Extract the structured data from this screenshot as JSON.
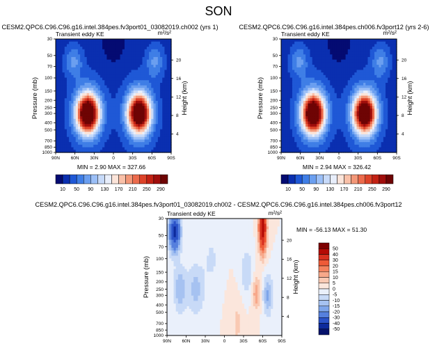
{
  "page_title": "SON",
  "chart_data": [
    {
      "type": "heatmap",
      "title": "CESM2.QPC6.C96.C96.g16.intel.384pes.fv3port01_03082019.ch002 (yrs 1)",
      "subtitle": "Transient eddy KE",
      "units": "m²/s²",
      "ylabel": "Pressure (mb)",
      "y2label": "Height (km)",
      "x_ticks": [
        "90N",
        "60N",
        "30N",
        "0",
        "30S",
        "60S",
        "90S"
      ],
      "y_ticks": [
        "30",
        "50",
        "70",
        "100",
        "150",
        "200",
        "250",
        "300",
        "400",
        "500",
        "700",
        "850",
        "1000"
      ],
      "y2_ticks": [
        "20",
        "16",
        "12",
        "8",
        "4"
      ],
      "stats": "MIN = 2.90  MAX = 327.66",
      "min": 2.9,
      "max": 327.66,
      "jets": [
        {
          "lat": -40,
          "pressure": 300,
          "peak": 320
        },
        {
          "lat": 40,
          "pressure": 300,
          "peak": 300
        }
      ],
      "colorbar": {
        "labels": [
          "10",
          "50",
          "90",
          "130",
          "170",
          "210",
          "250",
          "290"
        ],
        "colors": [
          "#040b72",
          "#0a2fb0",
          "#1f58d6",
          "#3f7ee6",
          "#6b9ff0",
          "#9bbff7",
          "#c7daf9",
          "#e8eefb",
          "#fbe4d9",
          "#f9c0a8",
          "#f39778",
          "#ec6b4c",
          "#dd4329",
          "#c32214",
          "#a00e0c",
          "#6e0404"
        ]
      }
    },
    {
      "type": "heatmap",
      "title": "CESM2.QPC6.C96.C96.g16.intel.384pes.ch006.fv3port12 (yrs 2-6)",
      "subtitle": "Transient eddy KE",
      "units": "m²/s²",
      "ylabel": "Pressure (mb)",
      "y2label": "Height (km)",
      "x_ticks": [
        "90N",
        "60N",
        "30N",
        "0",
        "30S",
        "60S",
        "90S"
      ],
      "y_ticks": [
        "30",
        "50",
        "70",
        "100",
        "150",
        "200",
        "250",
        "300",
        "400",
        "500",
        "700",
        "850",
        "1000"
      ],
      "y2_ticks": [
        "20",
        "16",
        "12",
        "8",
        "4"
      ],
      "stats": "MIN = 2.94  MAX = 326.42",
      "min": 2.94,
      "max": 326.42,
      "jets": [
        {
          "lat": -40,
          "pressure": 300,
          "peak": 320
        },
        {
          "lat": 40,
          "pressure": 300,
          "peak": 300
        }
      ],
      "colorbar": {
        "labels": [
          "10",
          "50",
          "90",
          "130",
          "170",
          "210",
          "250",
          "290"
        ],
        "colors": [
          "#040b72",
          "#0a2fb0",
          "#1f58d6",
          "#3f7ee6",
          "#6b9ff0",
          "#9bbff7",
          "#c7daf9",
          "#e8eefb",
          "#fbe4d9",
          "#f9c0a8",
          "#f39778",
          "#ec6b4c",
          "#dd4329",
          "#c32214",
          "#a00e0c",
          "#6e0404"
        ]
      }
    },
    {
      "type": "heatmap",
      "title": "CESM2.QPC6.C96.C96.g16.intel.384pes.fv3port01_03082019.ch002 - CESM2.QPC6.C96.C96.g16.intel.384pes.ch006.fv3port12",
      "subtitle": "Transient eddy KE",
      "units": "m²/s²",
      "ylabel": "Pressure (mb)",
      "y2label": "Height (km)",
      "x_ticks": [
        "90N",
        "60N",
        "30N",
        "0",
        "30S",
        "60S",
        "90S"
      ],
      "y_ticks": [
        "30",
        "50",
        "70",
        "100",
        "150",
        "200",
        "250",
        "300",
        "400",
        "500",
        "700",
        "850",
        "1000"
      ],
      "y2_ticks": [
        "20",
        "16",
        "12",
        "8",
        "4"
      ],
      "stats": "MIN = -56.13  MAX = 51.30",
      "min": -56.13,
      "max": 51.3,
      "colorbar": {
        "labels": [
          "50",
          "40",
          "30",
          "20",
          "15",
          "10",
          "5",
          "0",
          "-5",
          "-10",
          "-15",
          "-20",
          "-30",
          "-40",
          "-50"
        ],
        "colors": [
          "#7d0000",
          "#b40a05",
          "#d7301f",
          "#ee5a37",
          "#f4825e",
          "#f7a88a",
          "#f9c9b3",
          "#fbe6dc",
          "#eaf0fb",
          "#c8daf7",
          "#a6c2f1",
          "#7ea5ea",
          "#5680dd",
          "#2b52c8",
          "#0d2a9c",
          "#06126b"
        ]
      }
    }
  ]
}
